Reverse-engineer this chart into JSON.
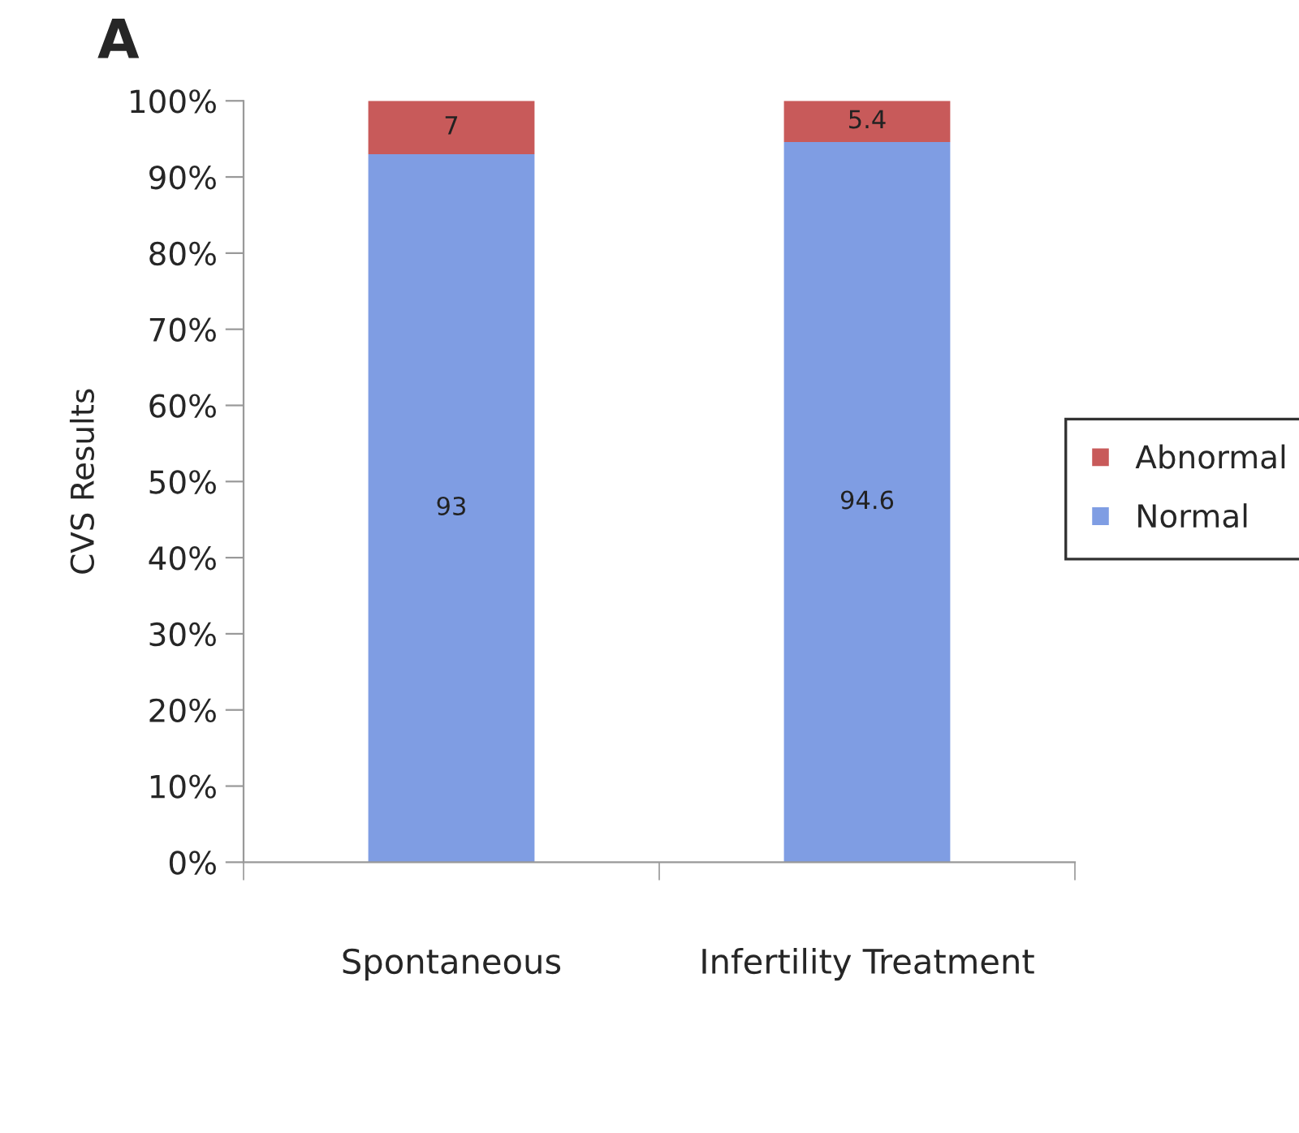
{
  "chart_data": {
    "type": "bar",
    "title": "A",
    "ylabel": "CVS Results",
    "categories": [
      "Spontaneous",
      "Infertility Treatment"
    ],
    "stacked": true,
    "series": [
      {
        "name": "Normal",
        "color": "#7f9de3",
        "values": [
          93,
          94.6
        ]
      },
      {
        "name": "Abnormal",
        "color": "#c85a5a",
        "values": [
          7,
          5.4
        ]
      }
    ],
    "ylim": [
      0,
      100
    ],
    "yticks": [
      {
        "value": 0,
        "label": "0%"
      },
      {
        "value": 10,
        "label": "10%"
      },
      {
        "value": 20,
        "label": "20%"
      },
      {
        "value": 30,
        "label": "30%"
      },
      {
        "value": 40,
        "label": "40%"
      },
      {
        "value": 50,
        "label": "50%"
      },
      {
        "value": 60,
        "label": "60%"
      },
      {
        "value": 70,
        "label": "70%"
      },
      {
        "value": 80,
        "label": "80%"
      },
      {
        "value": 90,
        "label": "90%"
      },
      {
        "value": 100,
        "label": "100%"
      }
    ],
    "data_labels": true,
    "legend": "right",
    "grid": false
  }
}
